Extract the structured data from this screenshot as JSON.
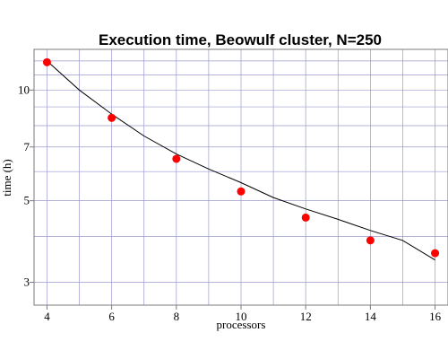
{
  "chart_data": {
    "type": "scatter",
    "title": "Execution time, Beowulf cluster, N=250",
    "xlabel": "processors",
    "ylabel": "time (h)",
    "x_scale": "linear",
    "y_scale": "log",
    "xlim": [
      3.6,
      16.4
    ],
    "ylim": [
      2.6,
      12.9
    ],
    "x_ticks": [
      4,
      6,
      8,
      10,
      12,
      14,
      16
    ],
    "y_ticks": [
      3,
      5,
      7,
      10
    ],
    "grid": true,
    "series": [
      {
        "mode": "markers",
        "color": "#ff0000",
        "x": [
          4,
          6,
          8,
          10,
          12,
          14,
          16
        ],
        "y": [
          11.9,
          8.4,
          6.5,
          5.3,
          4.5,
          3.9,
          3.6
        ]
      },
      {
        "mode": "line",
        "color": "#000000",
        "x": [
          4,
          5,
          6,
          7,
          8,
          9,
          10,
          11,
          12,
          13,
          14,
          15,
          16
        ],
        "y": [
          12.0,
          10.0,
          8.6,
          7.5,
          6.7,
          6.1,
          5.6,
          5.1,
          4.75,
          4.45,
          4.15,
          3.9,
          3.45
        ]
      }
    ]
  }
}
